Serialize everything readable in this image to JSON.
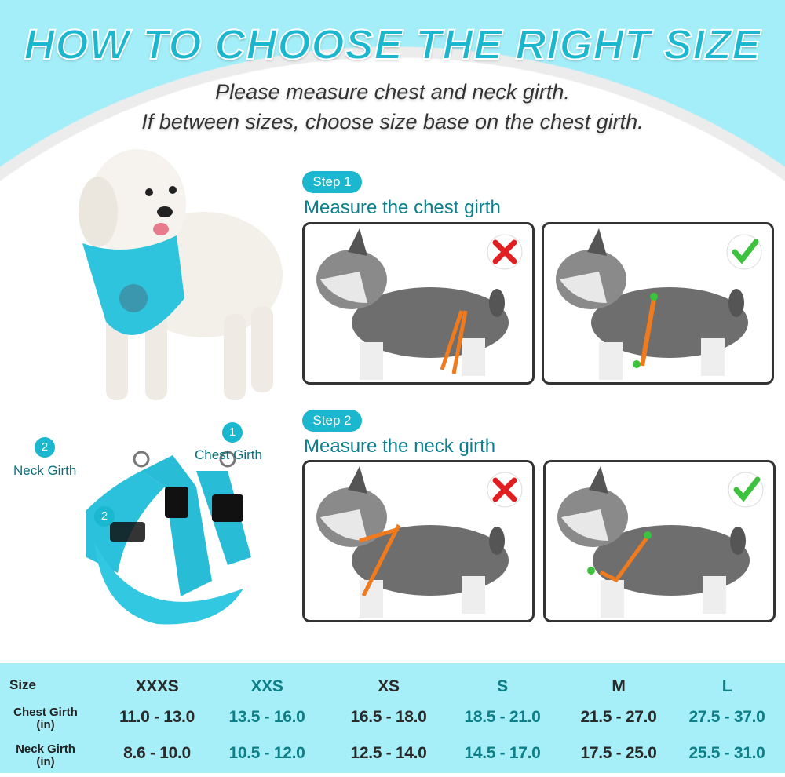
{
  "title": "HOW TO CHOOSE THE RIGHT SIZE",
  "subtitle": [
    "Please measure chest and neck girth.",
    "If between sizes, choose size base on the chest girth."
  ],
  "steps": [
    {
      "badge": "Step 1",
      "text": "Measure the chest girth",
      "wrong_icon": "red-x-icon",
      "right_icon": "green-check-icon"
    },
    {
      "badge": "Step 2",
      "text": "Measure the neck girth",
      "wrong_icon": "red-x-icon",
      "right_icon": "green-check-icon"
    }
  ],
  "harness_labels": {
    "neck_num": "2",
    "neck": "Neck Girth",
    "chest_num": "1",
    "chest": "Chest Girth",
    "harness_num": "2"
  },
  "colors": {
    "accent": "#1ab7cf",
    "table_bg": "#a6eff8",
    "wrong": "#e02020",
    "right": "#3cc23c",
    "strap": "#f07a1e"
  },
  "table": {
    "size_label": "Size",
    "chest_label": "Chest Girth",
    "chest_unit": "(in)",
    "neck_label": "Neck Girth",
    "neck_unit": "(in)",
    "sizes": [
      "XXXS",
      "XXS",
      "XS",
      "S",
      "M",
      "L"
    ],
    "chest": [
      "11.0 - 13.0",
      "13.5 - 16.0",
      "16.5 - 18.0",
      "18.5 - 21.0",
      "21.5 - 27.0",
      "27.5 - 37.0"
    ],
    "neck": [
      "8.6 - 10.0",
      "10.5 - 12.0",
      "12.5 - 14.0",
      "14.5 - 17.0",
      "17.5 - 25.0",
      "25.5 - 31.0"
    ]
  }
}
